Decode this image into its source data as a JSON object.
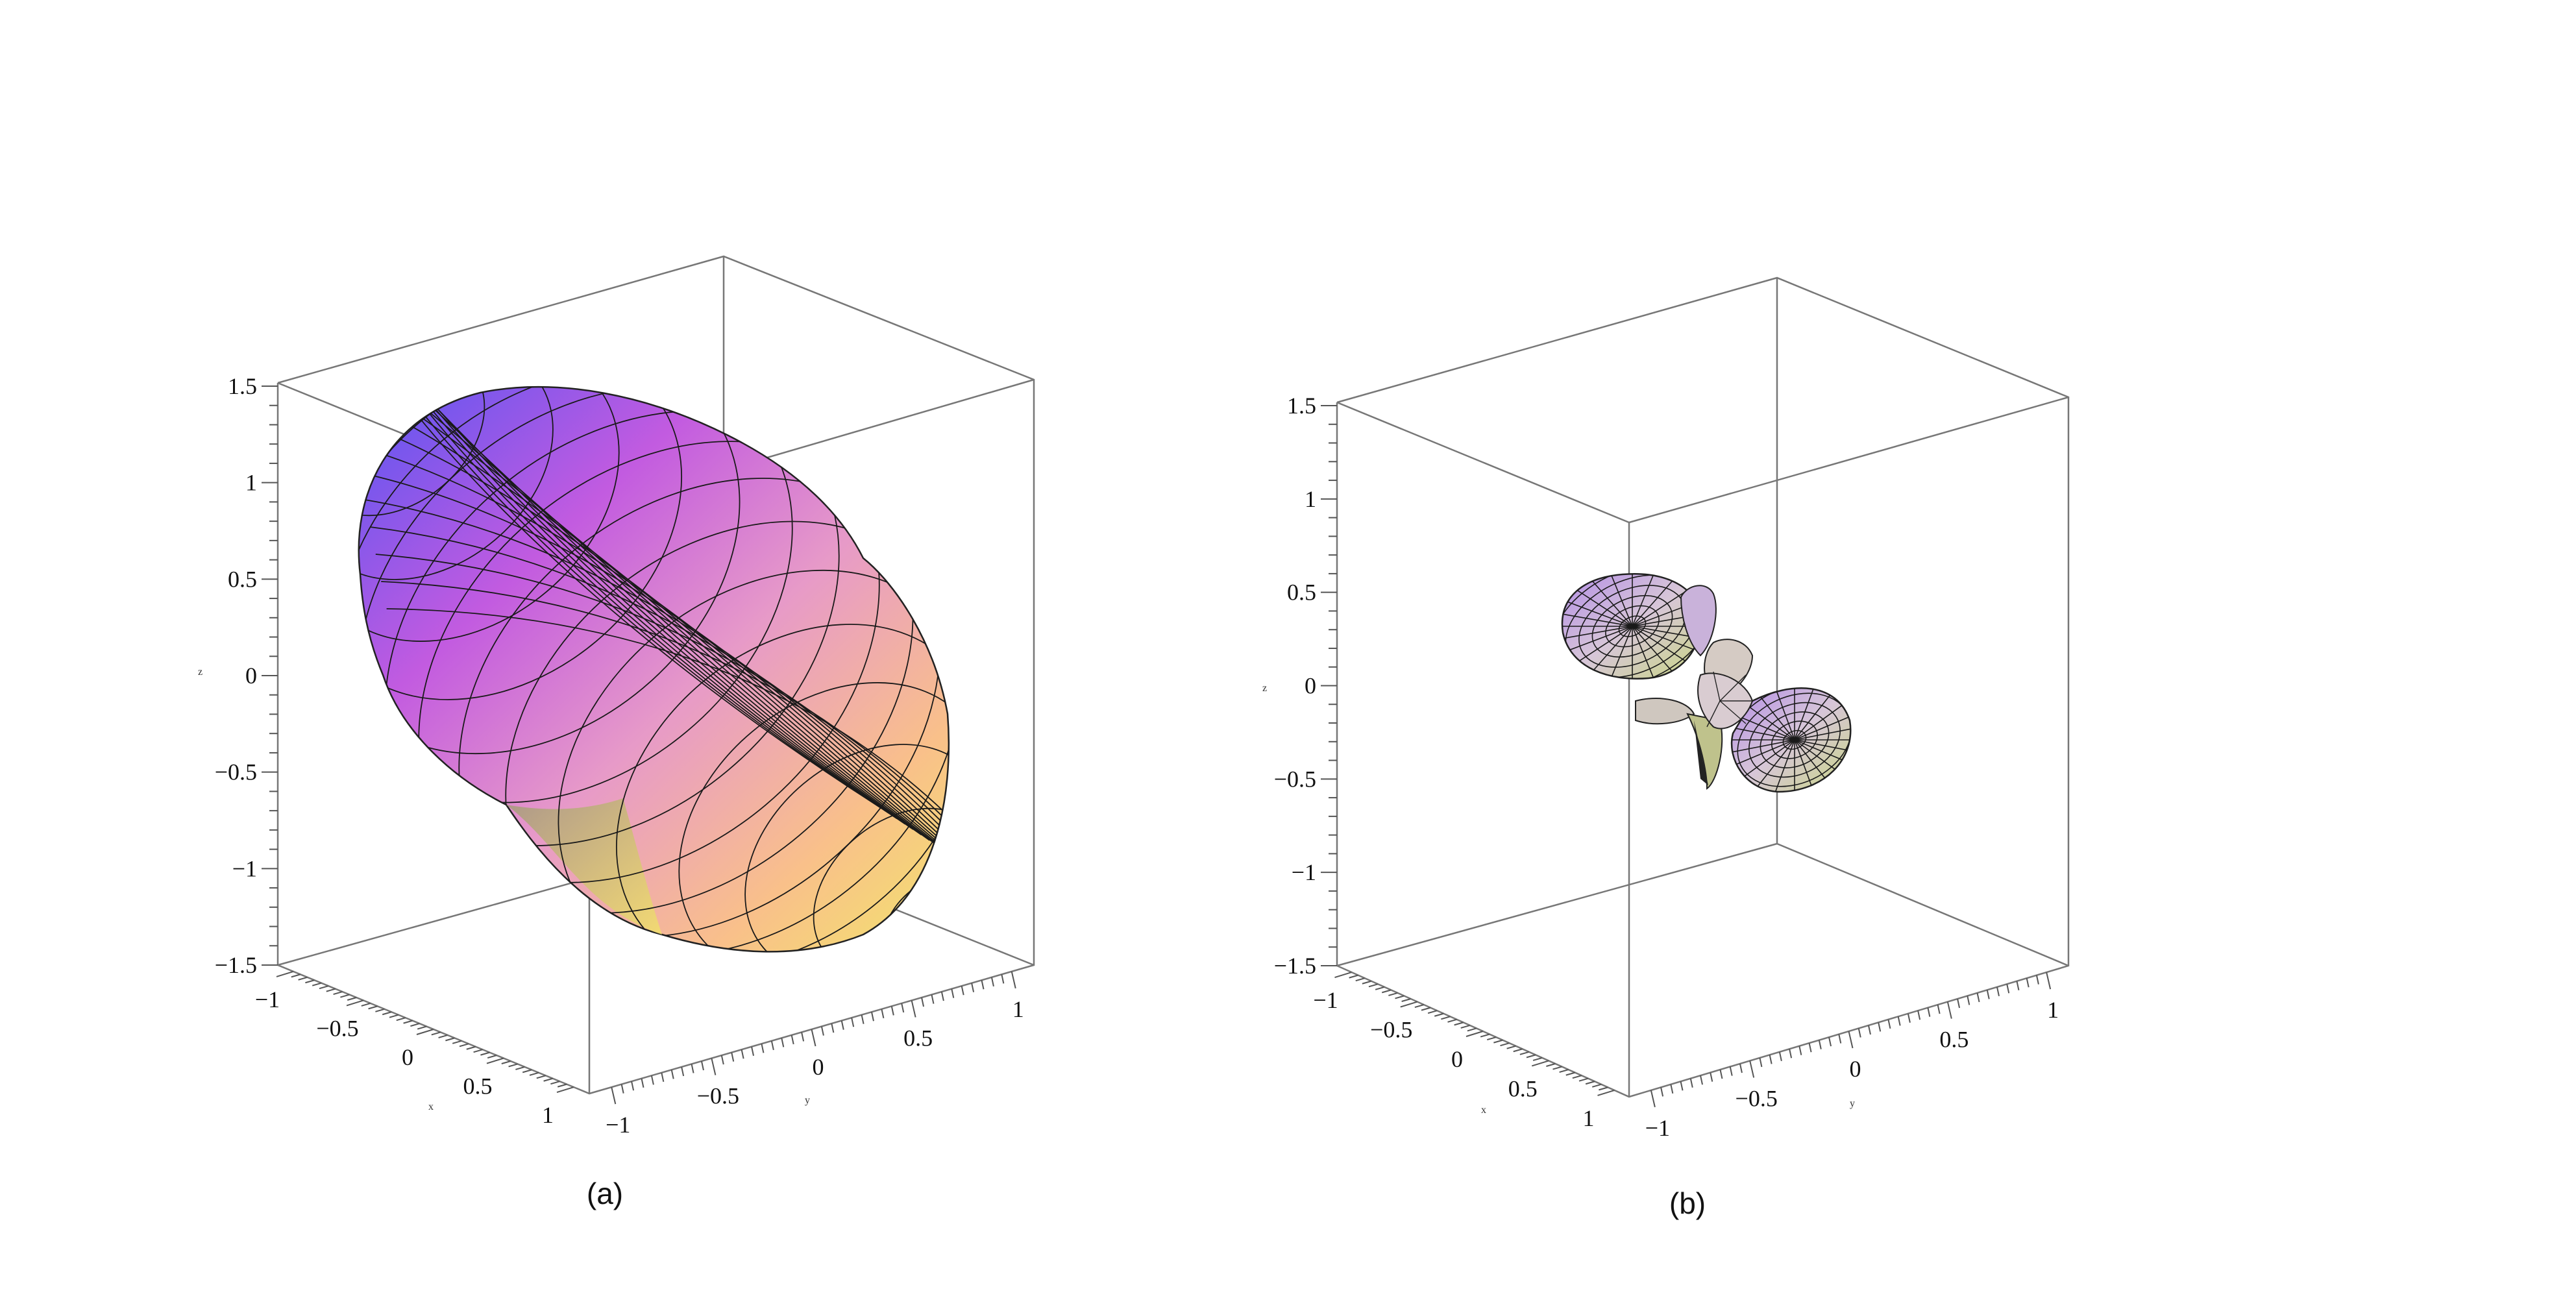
{
  "figures": [
    {
      "id": "a",
      "caption": "(a)",
      "z_ticks": [
        "1.5",
        "1",
        "0.5",
        "0",
        "−0.5",
        "−1",
        "−1.5"
      ],
      "x_ticks": [
        "−1",
        "−0.5",
        "0",
        "0.5",
        "1"
      ],
      "y_ticks": [
        "−1",
        "−0.5",
        "0",
        "0.5",
        "1"
      ],
      "surface": "smooth peanut-shaped lobe, violet to magenta to yellow gradient"
    },
    {
      "id": "b",
      "caption": "(b)",
      "z_ticks": [
        "1.5",
        "1",
        "0.5",
        "0",
        "−0.5",
        "−1",
        "−1.5"
      ],
      "x_ticks": [
        "−1",
        "−0.5",
        "0",
        "0.5",
        "1"
      ],
      "y_ticks": [
        "−1",
        "−0.5",
        "0",
        "0.5",
        "1"
      ],
      "surface": "multi-lobed pattern with two main lobes, lavender to olive"
    }
  ],
  "colors": {
    "violet": "#6a5cf0",
    "magenta": "#d46ae0",
    "pink": "#eaa2c8",
    "yellow": "#f3e070",
    "lavender": "#b89ad8",
    "olive": "#c8d08a",
    "mesh": "#1a1a1a"
  }
}
